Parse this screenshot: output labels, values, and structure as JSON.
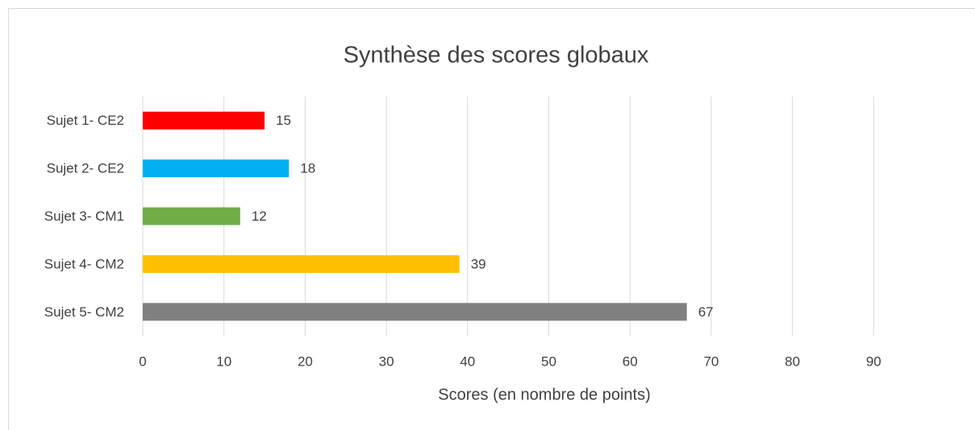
{
  "chart_data": {
    "type": "bar",
    "orientation": "horizontal",
    "title": "Synthèse des scores globaux",
    "x_label": "Scores (en nombre de points)",
    "categories": [
      "Sujet 1- CE2",
      "Sujet 2- CE2",
      "Sujet 3- CM1",
      "Sujet 4- CM2",
      "Sujet 5- CM2"
    ],
    "values": [
      15,
      18,
      12,
      39,
      67
    ],
    "colors": [
      "#ff0000",
      "#00b0f0",
      "#70ad47",
      "#ffc000",
      "#808080"
    ],
    "xlim": [
      0,
      100
    ],
    "xticks": [
      0,
      10,
      20,
      30,
      40,
      50,
      60,
      70,
      80,
      90
    ],
    "grid": true
  }
}
